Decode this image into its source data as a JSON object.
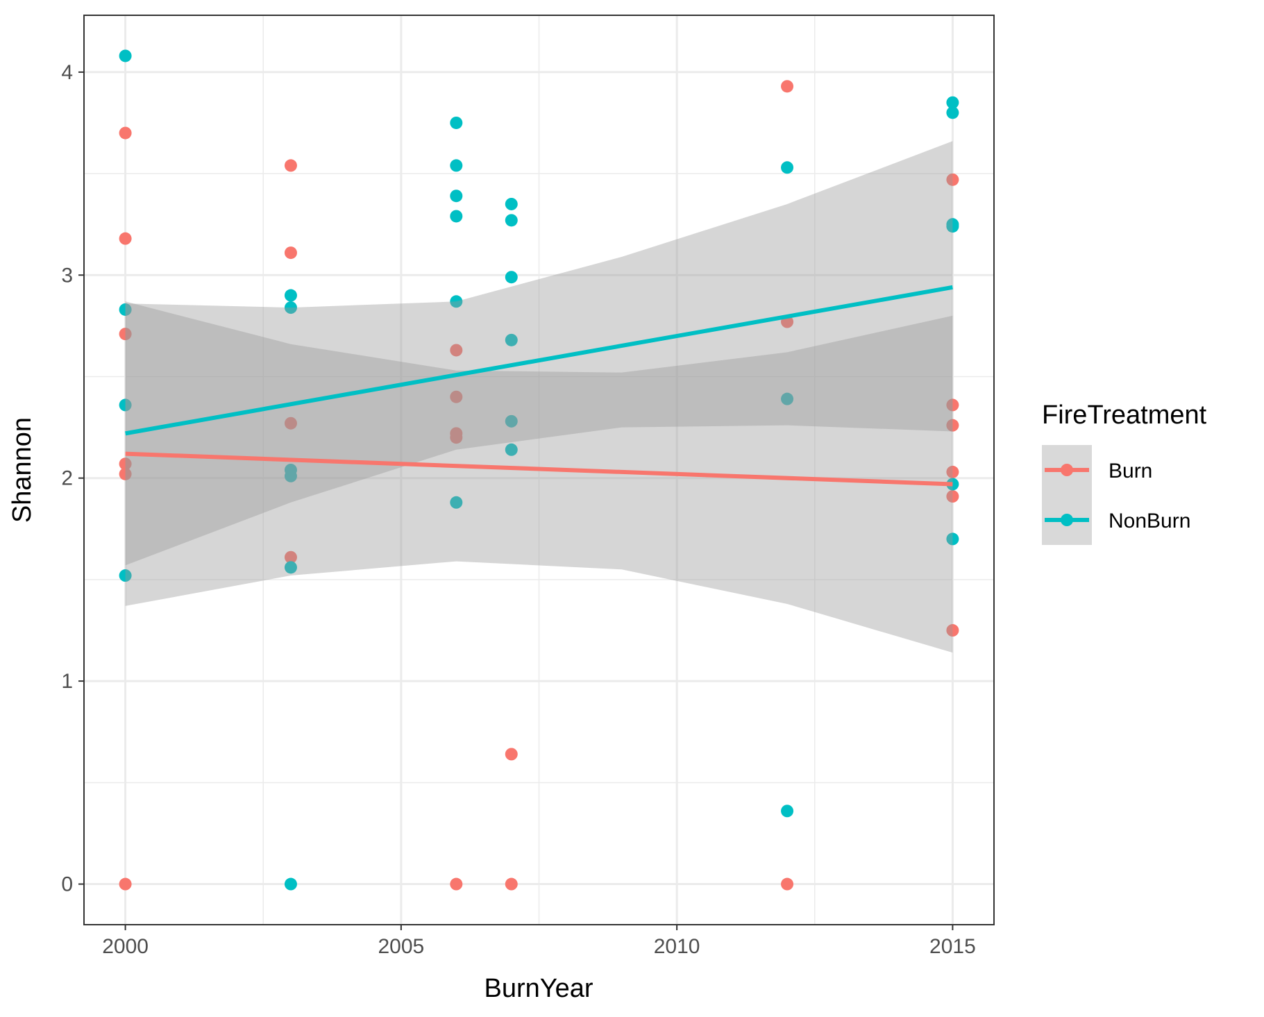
{
  "chart_data": {
    "type": "scatter",
    "xlabel": "BurnYear",
    "ylabel": "Shannon",
    "xlim": [
      1999.25,
      2015.75
    ],
    "ylim": [
      -0.2,
      4.28
    ],
    "x_ticks": [
      2000,
      2005,
      2010,
      2015
    ],
    "x_tick_labels": [
      "2000",
      "2005",
      "2010",
      "2015"
    ],
    "y_ticks": [
      0,
      1,
      2,
      3,
      4
    ],
    "y_tick_labels": [
      "0",
      "1",
      "2",
      "3",
      "4"
    ],
    "grid": true,
    "legend": {
      "title": "FireTreatment",
      "position": "right",
      "entries": [
        "Burn",
        "NonBurn"
      ]
    },
    "series": [
      {
        "name": "Burn",
        "color": "#F8766D",
        "points": [
          [
            2000,
            3.7
          ],
          [
            2000,
            3.18
          ],
          [
            2000,
            2.71
          ],
          [
            2000,
            2.07
          ],
          [
            2000,
            2.02
          ],
          [
            2000,
            0.0
          ],
          [
            2003,
            3.54
          ],
          [
            2003,
            3.11
          ],
          [
            2003,
            2.27
          ],
          [
            2003,
            1.61
          ],
          [
            2006,
            2.63
          ],
          [
            2006,
            2.4
          ],
          [
            2006,
            2.22
          ],
          [
            2006,
            2.2
          ],
          [
            2006,
            0.0
          ],
          [
            2007,
            0.64
          ],
          [
            2007,
            0.0
          ],
          [
            2012,
            3.93
          ],
          [
            2012,
            2.77
          ],
          [
            2012,
            0.0
          ],
          [
            2015,
            3.47
          ],
          [
            2015,
            2.36
          ],
          [
            2015,
            2.26
          ],
          [
            2015,
            2.03
          ],
          [
            2015,
            1.91
          ],
          [
            2015,
            1.25
          ]
        ],
        "fit": {
          "x": [
            2000,
            2015
          ],
          "y": [
            2.12,
            1.97
          ]
        },
        "ci": {
          "x": [
            2000,
            2003,
            2006,
            2009,
            2012,
            2015
          ],
          "lower": [
            1.37,
            1.52,
            1.59,
            1.55,
            1.38,
            1.14
          ],
          "upper": [
            2.87,
            2.66,
            2.53,
            2.52,
            2.62,
            2.8
          ]
        }
      },
      {
        "name": "NonBurn",
        "color": "#00BFC4",
        "points": [
          [
            2000,
            4.08
          ],
          [
            2000,
            2.83
          ],
          [
            2000,
            2.36
          ],
          [
            2000,
            1.52
          ],
          [
            2003,
            2.9
          ],
          [
            2003,
            2.84
          ],
          [
            2003,
            2.04
          ],
          [
            2003,
            2.01
          ],
          [
            2003,
            1.56
          ],
          [
            2003,
            0.0
          ],
          [
            2006,
            3.75
          ],
          [
            2006,
            3.54
          ],
          [
            2006,
            3.39
          ],
          [
            2006,
            3.29
          ],
          [
            2006,
            2.87
          ],
          [
            2006,
            1.88
          ],
          [
            2007,
            3.35
          ],
          [
            2007,
            3.27
          ],
          [
            2007,
            2.99
          ],
          [
            2007,
            2.68
          ],
          [
            2007,
            2.28
          ],
          [
            2007,
            2.14
          ],
          [
            2012,
            3.53
          ],
          [
            2012,
            2.39
          ],
          [
            2012,
            0.36
          ],
          [
            2015,
            3.85
          ],
          [
            2015,
            3.8
          ],
          [
            2015,
            3.25
          ],
          [
            2015,
            3.24
          ],
          [
            2015,
            1.97
          ],
          [
            2015,
            1.7
          ]
        ],
        "fit": {
          "x": [
            2000,
            2015
          ],
          "y": [
            2.22,
            2.94
          ]
        },
        "ci": {
          "x": [
            2000,
            2003,
            2006,
            2009,
            2012,
            2015
          ],
          "lower": [
            1.57,
            1.88,
            2.14,
            2.25,
            2.26,
            2.23
          ],
          "upper": [
            2.86,
            2.84,
            2.87,
            3.09,
            3.35,
            3.66
          ]
        }
      }
    ]
  }
}
